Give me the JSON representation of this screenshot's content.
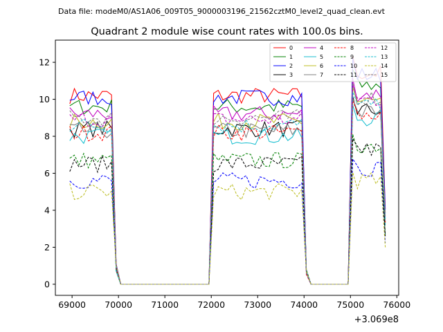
{
  "header": {
    "data_file_label": "Data file: modeM0/AS1A06_009T05_9000003196_21562cztM0_level2_quad_clean.evt"
  },
  "chart_data": {
    "type": "line",
    "title": "Quadrant 2 module wise count rates with 100.0s bins.",
    "xlabel": "",
    "ylabel": "",
    "x_offset_label": "+3.069e8",
    "xlim": [
      68640,
      76040
    ],
    "ylim": [
      -0.6,
      13.2
    ],
    "xticks": [
      69000,
      70000,
      71000,
      72000,
      73000,
      74000,
      75000,
      76000
    ],
    "yticks": [
      0,
      2,
      4,
      6,
      8,
      10,
      12
    ],
    "grid": false,
    "legend_placement": "top-right",
    "legend_columns": 4,
    "x": [
      68950,
      69050,
      69150,
      69250,
      69350,
      69450,
      69550,
      69650,
      69750,
      69850,
      69950,
      70050,
      70150,
      70250,
      70350,
      70450,
      70550,
      70650,
      70750,
      70850,
      70950,
      71050,
      71150,
      71250,
      71350,
      71450,
      71550,
      71650,
      71750,
      71850,
      71950,
      72050,
      72150,
      72250,
      72350,
      72450,
      72550,
      72650,
      72750,
      72850,
      72950,
      73050,
      73150,
      73250,
      73350,
      73450,
      73550,
      73650,
      73750,
      73850,
      73950,
      74050,
      74150,
      74250,
      74350,
      74450,
      74550,
      74650,
      74750,
      74850,
      74950,
      75050,
      75150,
      75250,
      75350,
      75450,
      75550,
      75650,
      75750
    ],
    "series": [
      {
        "name": "0",
        "color": "#ff0000",
        "dash": false,
        "level": 10.2
      },
      {
        "name": "1",
        "color": "#008000",
        "dash": false,
        "level": 9.6
      },
      {
        "name": "2",
        "color": "#0000ff",
        "dash": false,
        "level": 10.1
      },
      {
        "name": "3",
        "color": "#000000",
        "dash": false,
        "level": 8.4
      },
      {
        "name": "4",
        "color": "#bf00bf",
        "dash": false,
        "level": 9.2
      },
      {
        "name": "5",
        "color": "#17becf",
        "dash": false,
        "level": 8.0
      },
      {
        "name": "6",
        "color": "#bcbd22",
        "dash": false,
        "level": 8.8
      },
      {
        "name": "7",
        "color": "#7f7f7f",
        "dash": false,
        "level": 8.3
      },
      {
        "name": "8",
        "color": "#ff0000",
        "dash": true,
        "level": 8.2
      },
      {
        "name": "9",
        "color": "#008000",
        "dash": true,
        "level": 6.7
      },
      {
        "name": "10",
        "color": "#0000ff",
        "dash": true,
        "level": 5.6
      },
      {
        "name": "11",
        "color": "#000000",
        "dash": true,
        "level": 6.5
      },
      {
        "name": "12",
        "color": "#bf00bf",
        "dash": true,
        "level": 8.9
      },
      {
        "name": "13",
        "color": "#17becf",
        "dash": true,
        "level": 8.6
      },
      {
        "name": "14",
        "color": "#bcbd22",
        "dash": true,
        "level": 5.0
      },
      {
        "name": "15",
        "color": "#7f7f7f",
        "dash": true,
        "level": 9.0
      }
    ],
    "active_intervals": [
      [
        68950,
        69850
      ],
      [
        72050,
        73950
      ],
      [
        75050,
        75650
      ]
    ],
    "transition_points": [
      69950,
      71950,
      74050,
      74950,
      75750
    ]
  }
}
